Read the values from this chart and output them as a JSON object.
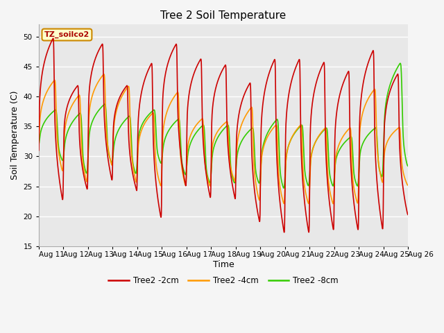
{
  "title": "Tree 2 Soil Temperature",
  "xlabel": "Time",
  "ylabel": "Soil Temperature (C)",
  "ylim": [
    15,
    52
  ],
  "yticks": [
    15,
    20,
    25,
    30,
    35,
    40,
    45,
    50
  ],
  "legend_label": "TZ_soilco2",
  "series_labels": [
    "Tree2 -2cm",
    "Tree2 -4cm",
    "Tree2 -8cm"
  ],
  "series_colors": [
    "#cc0000",
    "#ff9900",
    "#33cc00"
  ],
  "series_linewidths": [
    1.2,
    1.2,
    1.2
  ],
  "x_tick_labels": [
    "Aug 11",
    "Aug 12",
    "Aug 13",
    "Aug 14",
    "Aug 15",
    "Aug 16",
    "Aug 17",
    "Aug 18",
    "Aug 19",
    "Aug 20",
    "Aug 21",
    "Aug 22",
    "Aug 23",
    "Aug 24",
    "Aug 25",
    "Aug 26"
  ],
  "plot_bg_color": "#e8e8e8",
  "fig_bg_color": "#f5f5f5",
  "grid_color": "#ffffff",
  "title_fontsize": 11,
  "axis_label_fontsize": 9,
  "tick_label_fontsize": 7.5,
  "n_days": 15,
  "pts_per_day": 144,
  "peaks_2cm": [
    50,
    42.0,
    49.0,
    42.0,
    45.8,
    49.0,
    46.5,
    45.5,
    42.5,
    46.5,
    46.5,
    46.0,
    44.5,
    48.0,
    44.0
  ],
  "mins_2cm": [
    22,
    24.0,
    25.5,
    24.0,
    19.0,
    24.5,
    22.5,
    22.5,
    18.5,
    16.5,
    16.5,
    17.0,
    17.0,
    17.0,
    20.0
  ],
  "peaks_4cm": [
    43,
    40.5,
    44.0,
    42.0,
    37.5,
    41.0,
    36.5,
    36.0,
    38.5,
    35.5,
    35.5,
    35.0,
    35.0,
    41.5,
    35.0
  ],
  "mins_4cm": [
    27,
    25.0,
    28.0,
    25.0,
    24.5,
    24.5,
    24.5,
    25.5,
    22.0,
    21.5,
    21.5,
    21.5,
    21.5,
    25.0,
    25.0
  ],
  "peaks_8cm": [
    38,
    37.5,
    39.0,
    37.0,
    38.0,
    36.5,
    35.5,
    35.5,
    35.0,
    36.5,
    35.5,
    35.0,
    33.5,
    35.0,
    46.0
  ],
  "mins_8cm": [
    29,
    26.5,
    28.5,
    26.5,
    28.5,
    26.5,
    25.0,
    25.0,
    25.0,
    24.0,
    24.5,
    24.5,
    24.5,
    26.0,
    28.0
  ]
}
